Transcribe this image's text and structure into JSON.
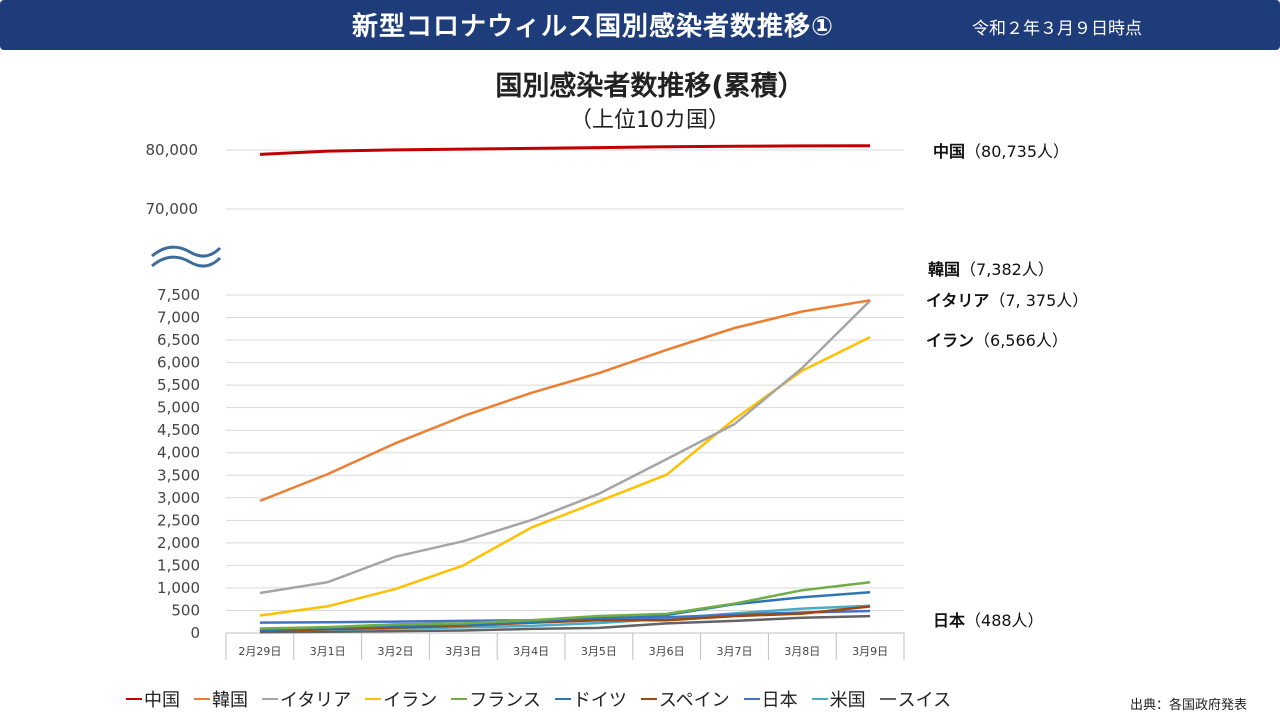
{
  "header": {
    "title": "新型コロナウィルス国別感染者数推移①",
    "date": "令和２年３月９日時点"
  },
  "chart_data": {
    "type": "line",
    "title": "国別感染者数推移(累積）",
    "subtitle": "（上位10カ国）",
    "categories": [
      "2月29日",
      "3月1日",
      "3月2日",
      "3月3日",
      "3月4日",
      "3月5日",
      "3月6日",
      "3月7日",
      "3月8日",
      "3月9日"
    ],
    "ylim_lower": [
      0,
      7500
    ],
    "ylim_upper": [
      70000,
      80000
    ],
    "yticks_lower": [
      "0",
      "500",
      "1,000",
      "1,500",
      "2,000",
      "2,500",
      "3,000",
      "3,500",
      "4,000",
      "4,500",
      "5,000",
      "5,500",
      "6,000",
      "6,500",
      "7,000",
      "7,500"
    ],
    "yticks_upper": [
      "70,000",
      "80,000"
    ],
    "series": [
      {
        "name": "中国",
        "color": "#c00000",
        "values": [
          79250,
          79820,
          80020,
          80150,
          80270,
          80410,
          80550,
          80650,
          80700,
          80735
        ]
      },
      {
        "name": "韓国",
        "color": "#ed7d31",
        "values": [
          2931,
          3526,
          4212,
          4812,
          5328,
          5766,
          6284,
          6767,
          7134,
          7382
        ]
      },
      {
        "name": "イタリア",
        "color": "#a5a5a5",
        "values": [
          888,
          1128,
          1694,
          2036,
          2502,
          3089,
          3858,
          4636,
          5883,
          7375
        ]
      },
      {
        "name": "イラン",
        "color": "#ffc000",
        "values": [
          388,
          593,
          978,
          1501,
          2336,
          2922,
          3513,
          4747,
          5823,
          6566
        ]
      },
      {
        "name": "フランス",
        "color": "#70ad47",
        "values": [
          100,
          130,
          191,
          212,
          285,
          377,
          423,
          653,
          949,
          1126
        ]
      },
      {
        "name": "ドイツ",
        "color": "#2e75b6",
        "values": [
          60,
          117,
          150,
          188,
          240,
          349,
          400,
          639,
          795,
          902
        ]
      },
      {
        "name": "スペイン",
        "color": "#9e480e",
        "values": [
          45,
          84,
          120,
          165,
          228,
          282,
          282,
          374,
          430,
          589
        ]
      },
      {
        "name": "日本",
        "color": "#4472c4",
        "values": [
          230,
          239,
          254,
          268,
          284,
          317,
          349,
          407,
          455,
          488
        ]
      },
      {
        "name": "米国",
        "color": "#4bacc6",
        "values": [
          68,
          74,
          100,
          124,
          158,
          221,
          319,
          435,
          541,
          605
        ]
      },
      {
        "name": "スイス",
        "color": "#636363",
        "values": [
          18,
          27,
          42,
          56,
          90,
          114,
          214,
          268,
          337,
          374
        ]
      }
    ],
    "end_labels": [
      {
        "name": "中国",
        "value": "（80,735人）"
      },
      {
        "name": "韓国",
        "value": "（7,382人）"
      },
      {
        "name": "イタリア",
        "value": "（7, 375人）"
      },
      {
        "name": "イラン",
        "value": "（6,566人）"
      },
      {
        "name": "日本",
        "value": "（488人）"
      }
    ],
    "source": "出典：各国政府発表"
  }
}
